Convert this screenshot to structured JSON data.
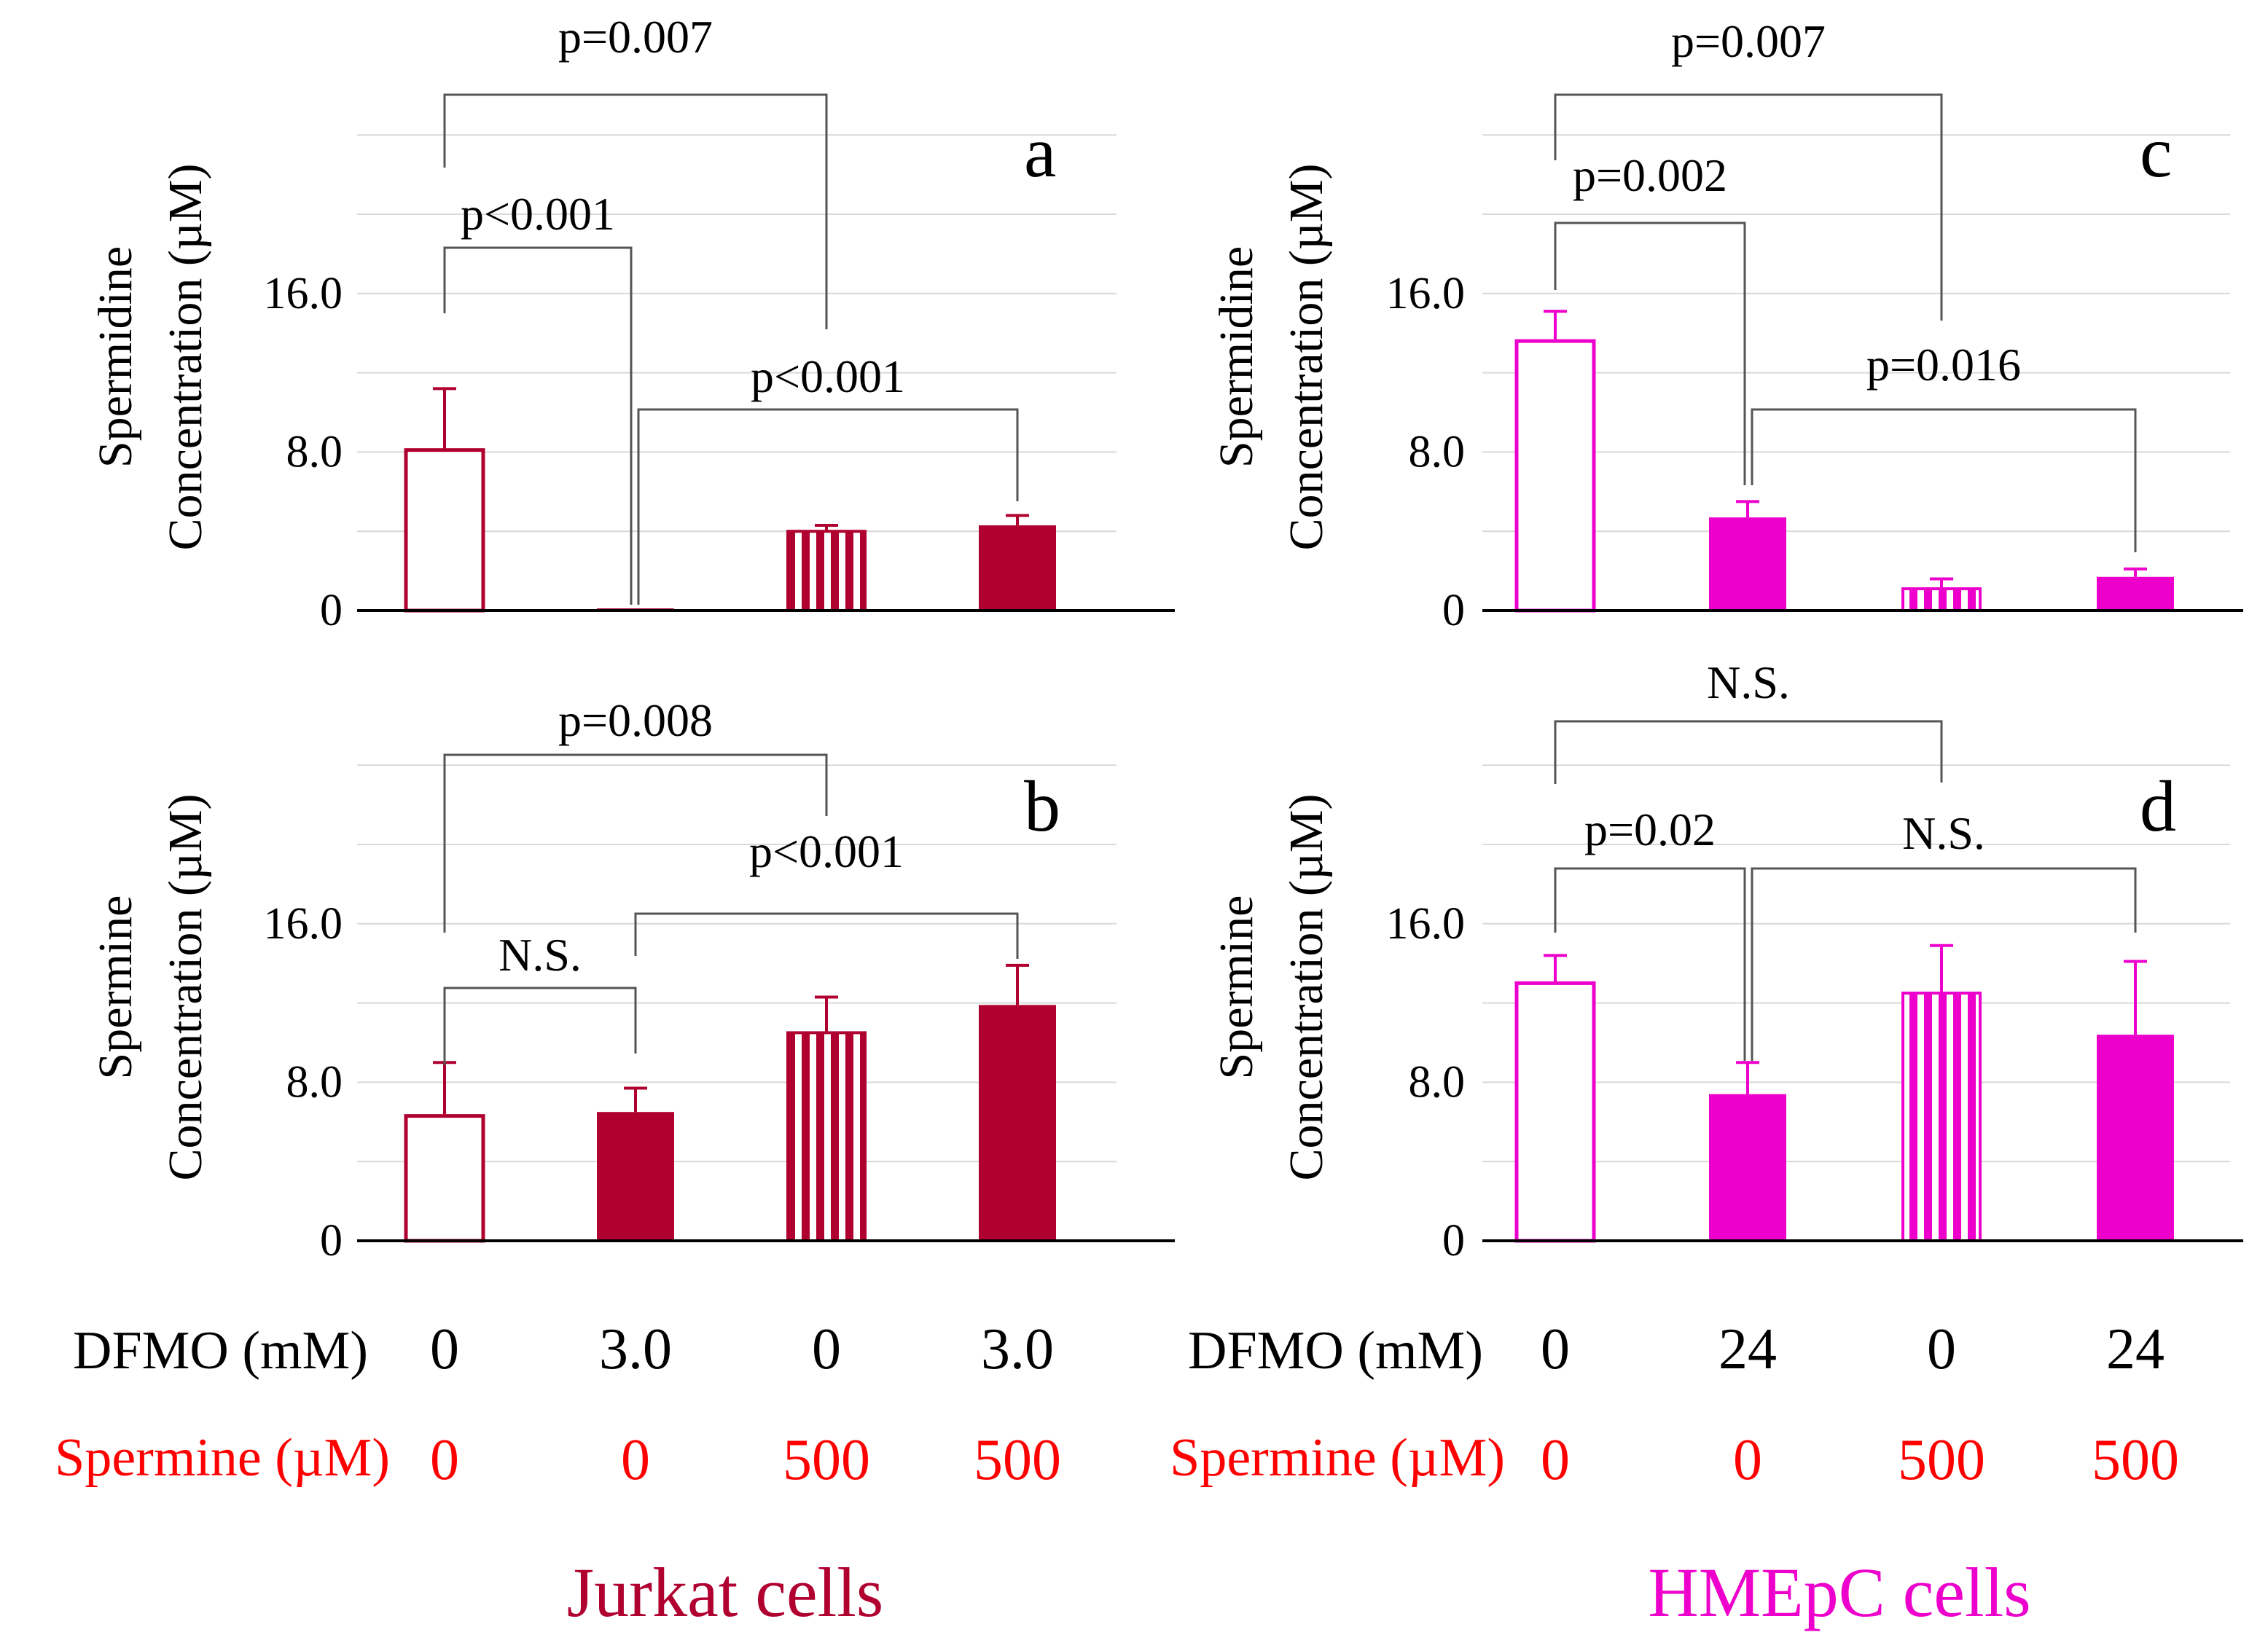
{
  "colors": {
    "jurkat": "#b00030",
    "hmepc": "#ee00cc",
    "conditions_label": "#ff0000",
    "axis": "#000000",
    "grid": "#d9d9d9",
    "bracket": "#555555"
  },
  "y_axis": {
    "ticks": [
      {
        "value": 0,
        "label": "0"
      },
      {
        "value": 8,
        "label": "8.0"
      },
      {
        "value": 16,
        "label": "16.0"
      }
    ]
  },
  "chart_data": [
    {
      "id": "a",
      "type": "bar",
      "panel_letter": "a",
      "ylabel_line1": "Spermidine",
      "ylabel_line2": "Concentration (µM)",
      "categories": [
        "DFMO 0 / Spermine 0",
        "DFMO 3.0 / Spermine 0",
        "DFMO 0 / Spermine 500",
        "DFMO 3.0 / Spermine 500"
      ],
      "values": [
        8.1,
        0.1,
        4.0,
        4.3
      ],
      "errors": [
        3.1,
        0.0,
        0.3,
        0.5
      ],
      "styles": [
        "open",
        "solid",
        "striped",
        "solid"
      ],
      "ylim": [
        0,
        24
      ],
      "comparisons": [
        {
          "from": 0,
          "to": 2,
          "label": "p=0.007"
        },
        {
          "from": 0,
          "to": 1,
          "label": "p<0.001"
        },
        {
          "from": 1,
          "to": 3,
          "label": "p<0.001"
        }
      ]
    },
    {
      "id": "b",
      "type": "bar",
      "panel_letter": "b",
      "ylabel_line1": "Spermine",
      "ylabel_line2": "Concentration (µM)",
      "categories": [
        "DFMO 0 / Spermine 0",
        "DFMO 3.0 / Spermine 0",
        "DFMO 0 / Spermine 500",
        "DFMO 3.0 / Spermine 500"
      ],
      "values": [
        6.3,
        6.5,
        10.5,
        11.9
      ],
      "errors": [
        2.7,
        1.2,
        1.8,
        2.0
      ],
      "styles": [
        "open",
        "solid",
        "striped",
        "solid"
      ],
      "ylim": [
        0,
        24
      ],
      "comparisons": [
        {
          "from": 0,
          "to": 2,
          "label": "p=0.008"
        },
        {
          "from": 0,
          "to": 1,
          "label": "N.S."
        },
        {
          "from": 1,
          "to": 3,
          "label": "p<0.001"
        }
      ]
    },
    {
      "id": "c",
      "type": "bar",
      "panel_letter": "c",
      "ylabel_line1": "Spermidine",
      "ylabel_line2": "Concentration (µM)",
      "categories": [
        "DFMO 0 / Spermine 0",
        "DFMO 24 / Spermine 0",
        "DFMO 0 / Spermine 500",
        "DFMO 24 / Spermine 500"
      ],
      "values": [
        13.6,
        4.7,
        1.1,
        1.7
      ],
      "errors": [
        1.5,
        0.8,
        0.5,
        0.4
      ],
      "styles": [
        "open",
        "solid",
        "striped",
        "solid"
      ],
      "ylim": [
        0,
        24
      ],
      "comparisons": [
        {
          "from": 0,
          "to": 2,
          "label": "p=0.007"
        },
        {
          "from": 0,
          "to": 1,
          "label": "p=0.002"
        },
        {
          "from": 1,
          "to": 3,
          "label": "p=0.016"
        }
      ]
    },
    {
      "id": "d",
      "type": "bar",
      "panel_letter": "d",
      "ylabel_line1": "Spermine",
      "ylabel_line2": "Concentration (µM)",
      "categories": [
        "DFMO 0 / Spermine 0",
        "DFMO 24 / Spermine 0",
        "DFMO 0 / Spermine 500",
        "DFMO 24 / Spermine 500"
      ],
      "values": [
        13.0,
        7.4,
        12.5,
        10.4
      ],
      "errors": [
        1.4,
        1.6,
        2.4,
        3.7
      ],
      "styles": [
        "open",
        "solid",
        "striped",
        "solid"
      ],
      "ylim": [
        0,
        24
      ],
      "comparisons": [
        {
          "from": 0,
          "to": 2,
          "label": "N.S."
        },
        {
          "from": 0,
          "to": 1,
          "label": "p=0.02"
        },
        {
          "from": 1,
          "to": 3,
          "label": "N.S."
        }
      ]
    }
  ],
  "conditions": [
    {
      "dfmo_label": "DFMO (mM)",
      "spermine_label": "Spermine (µM)",
      "dfmo_values": [
        "0",
        "3.0",
        "0",
        "3.0"
      ],
      "spermine_values": [
        "0",
        "0",
        "500",
        "500"
      ]
    },
    {
      "dfmo_label": "DFMO (mM)",
      "spermine_label": "Spermine (µM)",
      "dfmo_values": [
        "0",
        "24",
        "0",
        "24"
      ],
      "spermine_values": [
        "0",
        "0",
        "500",
        "500"
      ]
    }
  ],
  "cell_lines": [
    "Jurkat cells",
    "HMEpC cells"
  ]
}
